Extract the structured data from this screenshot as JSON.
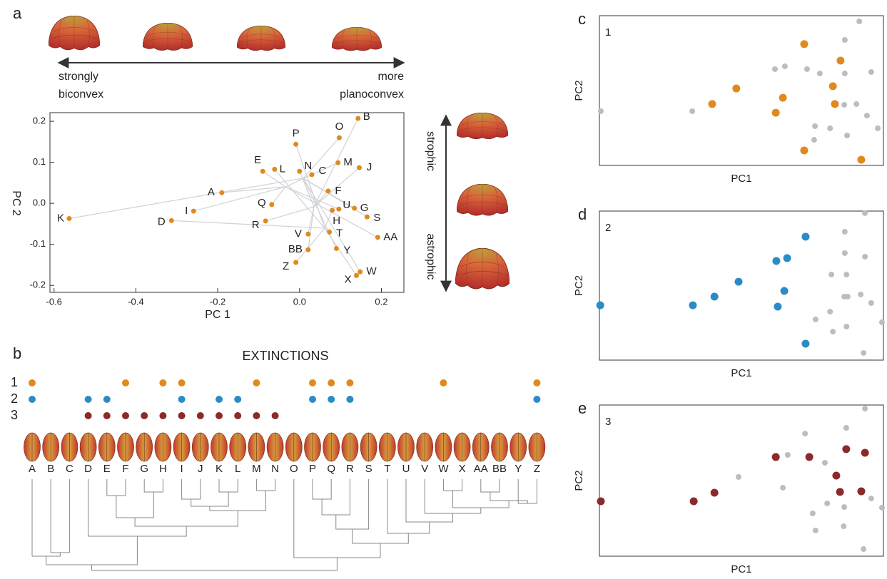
{
  "chart_data": [
    {
      "type": "scatter",
      "panel": "a",
      "x_label": "PC 1",
      "y_label": "PC 2",
      "color": "#e08a1e",
      "labels": [
        "A",
        "B",
        "C",
        "D",
        "E",
        "F",
        "G",
        "H",
        "I",
        "J",
        "K",
        "L",
        "M",
        "N",
        "O",
        "P",
        "Q",
        "R",
        "S",
        "T",
        "U",
        "V",
        "W",
        "X",
        "AA",
        "BB",
        "Y",
        "Z"
      ],
      "x": [
        -0.19,
        0.143,
        0.03,
        -0.313,
        -0.09,
        0.07,
        0.134,
        0.08,
        -0.259,
        0.146,
        -0.563,
        -0.061,
        0.094,
        0.0,
        0.097,
        -0.009,
        -0.068,
        -0.083,
        0.165,
        0.073,
        0.096,
        0.021,
        0.148,
        0.139,
        0.191,
        0.021,
        0.09,
        -0.009
      ],
      "values": [
        0.026,
        0.207,
        0.07,
        -0.042,
        0.078,
        0.03,
        -0.012,
        -0.017,
        -0.019,
        0.087,
        -0.037,
        0.083,
        0.099,
        0.078,
        0.16,
        0.144,
        -0.003,
        -0.043,
        -0.033,
        -0.07,
        -0.014,
        -0.075,
        -0.167,
        -0.176,
        -0.083,
        -0.113,
        -0.11,
        -0.144
      ],
      "xlim": [
        -0.61,
        0.255
      ],
      "ylim": [
        -0.217,
        0.221
      ],
      "xticks": [
        -0.6,
        -0.4,
        -0.2,
        {
          "value": 0,
          "label": "0.0"
        },
        0.2
      ],
      "yticks": [
        -0.2,
        -0.1,
        {
          "value": 0,
          "label": "0.0"
        },
        0.1,
        0.2
      ],
      "annotations": {
        "left": [
          "strongly",
          "biconvex"
        ],
        "right": [
          "more",
          "planoconvex"
        ],
        "top": "strophic",
        "bottom": "astrophic"
      }
    },
    {
      "type": "dot_matrix",
      "panel": "b",
      "title": "EXTINCTIONS",
      "categories": [
        "A",
        "B",
        "C",
        "D",
        "E",
        "F",
        "G",
        "H",
        "I",
        "J",
        "K",
        "L",
        "M",
        "N",
        "O",
        "P",
        "Q",
        "R",
        "S",
        "T",
        "U",
        "V",
        "W",
        "X",
        "AA",
        "BB",
        "Y",
        "Z"
      ],
      "series": [
        {
          "name": "1",
          "color": "#e08a1e",
          "values": [
            1,
            null,
            null,
            null,
            null,
            1,
            null,
            1,
            1,
            null,
            null,
            null,
            1,
            null,
            null,
            1,
            1,
            1,
            null,
            null,
            null,
            null,
            1,
            null,
            null,
            null,
            null,
            1
          ]
        },
        {
          "name": "2",
          "color": "#2b8cc4",
          "values": [
            1,
            null,
            null,
            1,
            1,
            null,
            null,
            null,
            1,
            null,
            1,
            1,
            null,
            null,
            null,
            1,
            1,
            1,
            null,
            null,
            null,
            null,
            null,
            null,
            null,
            null,
            null,
            1
          ]
        },
        {
          "name": "3",
          "color": "#8b2a2a",
          "values": [
            null,
            null,
            null,
            1,
            1,
            1,
            1,
            1,
            1,
            1,
            1,
            1,
            1,
            1,
            null,
            null,
            null,
            null,
            null,
            null,
            null,
            null,
            null,
            null,
            null,
            null,
            null,
            null
          ]
        }
      ]
    },
    {
      "type": "scatter_panel",
      "panel": "c",
      "x_label": "PC1",
      "y_label": "PC2",
      "xlim": [
        0,
        100
      ],
      "ylim": [
        0,
        100
      ],
      "series": [
        {
          "color": "#bdbdbd",
          "x": [
            0.5,
            32.7,
            61.8,
            65.3,
            73.1,
            77.6,
            86.4,
            91.5,
            86.4,
            95.7,
            75.9,
            75.6,
            81.2,
            86.2,
            90.5,
            94.2,
            98.0,
            87.2
          ],
          "values": [
            36.2,
            36.2,
            64.3,
            66.2,
            64.3,
            61.4,
            83.8,
            96.2,
            61.4,
            62.4,
            26.2,
            17.1,
            24.8,
            40.5,
            41.0,
            33.3,
            24.8,
            20.0
          ]
        },
        {
          "name": "1",
          "color": "#e08a1e",
          "x": [
            39.7,
            48.2,
            64.6,
            62.1,
            72.1,
            84.9,
            82.2,
            82.9,
            72.1,
            92.2
          ],
          "values": [
            41.0,
            51.4,
            45.2,
            35.2,
            81.0,
            70.0,
            52.9,
            41.0,
            10.0,
            3.8
          ]
        }
      ]
    },
    {
      "type": "scatter_panel",
      "panel": "d",
      "x_label": "PC1",
      "y_label": "PC2",
      "xlim": [
        0,
        100
      ],
      "ylim": [
        0,
        100
      ],
      "series": [
        {
          "color": "#bdbdbd",
          "x": [
            86.4,
            93.5,
            86.4,
            93.5,
            81.7,
            87.0,
            86.2,
            87.4,
            92.0,
            95.7,
            99.5,
            76.1,
            81.2,
            82.2,
            87.0,
            93.0
          ],
          "values": [
            86.1,
            98.6,
            71.8,
            69.4,
            57.4,
            57.4,
            42.6,
            42.6,
            44.0,
            38.3,
            25.4,
            27.3,
            32.5,
            19.1,
            22.5,
            4.8
          ]
        },
        {
          "name": "2",
          "color": "#2b8cc4",
          "x": [
            0.3,
            32.9,
            40.5,
            49.0,
            62.3,
            66.1,
            65.1,
            62.8,
            72.6,
            72.6
          ],
          "values": [
            36.8,
            36.8,
            42.6,
            52.6,
            66.5,
            68.4,
            46.4,
            35.9,
            82.8,
            11.0
          ]
        }
      ]
    },
    {
      "type": "scatter_panel",
      "panel": "e",
      "x_label": "PC1",
      "y_label": "PC2",
      "xlim": [
        0,
        100
      ],
      "ylim": [
        0,
        100
      ],
      "series": [
        {
          "color": "#bdbdbd",
          "x": [
            49.0,
            66.3,
            72.4,
            79.4,
            86.9,
            93.5,
            64.6,
            75.1,
            80.2,
            86.2,
            86.0,
            95.7,
            99.5,
            76.1,
            93.0
          ],
          "values": [
            52.4,
            67.0,
            81.1,
            61.8,
            84.9,
            97.6,
            45.3,
            28.3,
            34.9,
            32.5,
            19.8,
            38.2,
            32.1,
            17.0,
            4.7
          ]
        },
        {
          "name": "3",
          "color": "#8b2a2a",
          "x": [
            0.5,
            33.2,
            40.5,
            62.1,
            73.9,
            86.9,
            93.5,
            83.4,
            84.7,
            92.2
          ],
          "values": [
            36.3,
            36.3,
            42.0,
            65.6,
            65.6,
            70.8,
            68.4,
            53.3,
            42.5,
            42.9
          ]
        }
      ]
    }
  ]
}
